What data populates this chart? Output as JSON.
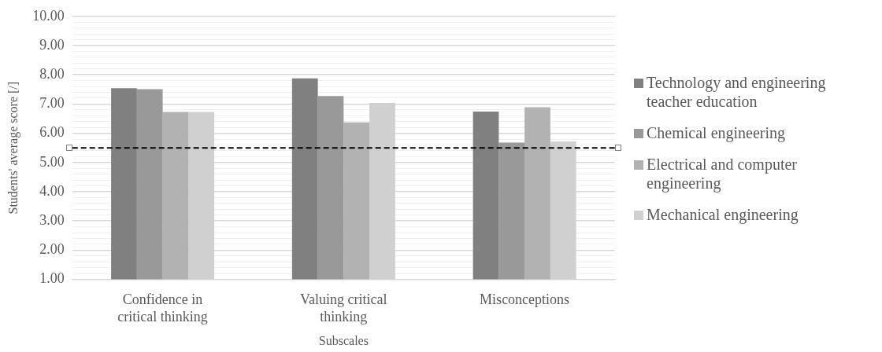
{
  "chart_data": {
    "type": "bar",
    "xlabel": "Subscales",
    "ylabel": "Students' average score [/]",
    "categories": [
      "Confidence in critical thinking",
      "Valuing critical thinking",
      "Misconceptions"
    ],
    "series": [
      {
        "name": "Technology and engineering teacher education",
        "color": "#808080",
        "values": [
          7.54,
          7.88,
          6.74
        ]
      },
      {
        "name": "Chemical engineering",
        "color": "#999999",
        "values": [
          7.51,
          7.27,
          5.68
        ]
      },
      {
        "name": "Electrical and computer engineering",
        "color": "#b2b2b2",
        "values": [
          6.73,
          6.37,
          6.89
        ]
      },
      {
        "name": "Mechanical engineering",
        "color": "#d0d0d0",
        "values": [
          6.73,
          7.04,
          5.72
        ]
      }
    ],
    "ylim": [
      1,
      10
    ],
    "yticks": [
      {
        "value": 1,
        "label": "1.00"
      },
      {
        "value": 1.2,
        "label": null
      },
      {
        "value": 1.4,
        "label": null
      },
      {
        "value": 1.6,
        "label": null
      },
      {
        "value": 1.8,
        "label": null
      },
      {
        "value": 2,
        "label": "2.00"
      },
      {
        "value": 2.2,
        "label": null
      },
      {
        "value": 2.4,
        "label": null
      },
      {
        "value": 2.6,
        "label": null
      },
      {
        "value": 2.8,
        "label": null
      },
      {
        "value": 3,
        "label": "3.00"
      },
      {
        "value": 3.2,
        "label": null
      },
      {
        "value": 3.4,
        "label": null
      },
      {
        "value": 3.6,
        "label": null
      },
      {
        "value": 3.8,
        "label": null
      },
      {
        "value": 4,
        "label": "4.00"
      },
      {
        "value": 4.2,
        "label": null
      },
      {
        "value": 4.4,
        "label": null
      },
      {
        "value": 4.6,
        "label": null
      },
      {
        "value": 4.8,
        "label": null
      },
      {
        "value": 5,
        "label": "5.00"
      },
      {
        "value": 5.2,
        "label": null
      },
      {
        "value": 5.4,
        "label": null
      },
      {
        "value": 5.6,
        "label": null
      },
      {
        "value": 5.8,
        "label": null
      },
      {
        "value": 6,
        "label": "6.00"
      },
      {
        "value": 6.2,
        "label": null
      },
      {
        "value": 6.4,
        "label": null
      },
      {
        "value": 6.6,
        "label": null
      },
      {
        "value": 6.8,
        "label": null
      },
      {
        "value": 7,
        "label": "7.00"
      },
      {
        "value": 7.2,
        "label": null
      },
      {
        "value": 7.4,
        "label": null
      },
      {
        "value": 7.6,
        "label": null
      },
      {
        "value": 7.8,
        "label": null
      },
      {
        "value": 8,
        "label": "8.00"
      },
      {
        "value": 8.2,
        "label": null
      },
      {
        "value": 8.4,
        "label": null
      },
      {
        "value": 8.6,
        "label": null
      },
      {
        "value": 8.8,
        "label": null
      },
      {
        "value": 9,
        "label": "9.00"
      },
      {
        "value": 9.2,
        "label": null
      },
      {
        "value": 9.4,
        "label": null
      },
      {
        "value": 9.6,
        "label": null
      },
      {
        "value": 9.8,
        "label": null
      },
      {
        "value": 10,
        "label": "10.00"
      }
    ],
    "grid": "y",
    "legend": "right",
    "ref_lines": [
      {
        "axis": "y",
        "value": 5.5,
        "color": "#000000",
        "line_style": "dashed"
      }
    ]
  }
}
